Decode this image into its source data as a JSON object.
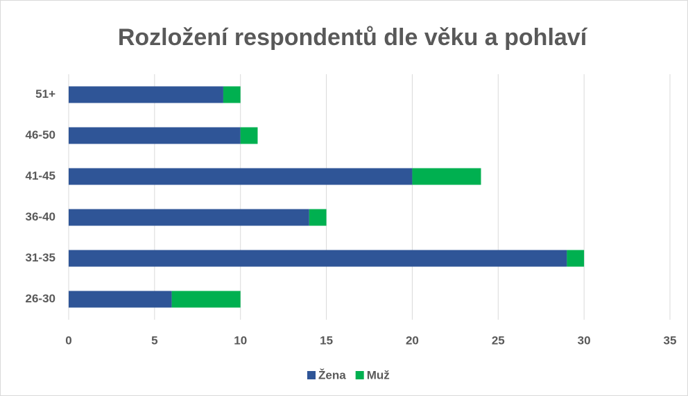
{
  "chart_data": {
    "type": "bar",
    "orientation": "horizontal",
    "stacked": true,
    "title": "Rozložení respondentů dle věku a pohlaví",
    "categories": [
      "26-30",
      "31-35",
      "36-40",
      "41-45",
      "46-50",
      "51+"
    ],
    "series": [
      {
        "name": "Žena",
        "color": "#2f5597",
        "values": [
          6,
          29,
          14,
          20,
          10,
          9
        ]
      },
      {
        "name": "Muž",
        "color": "#00b050",
        "values": [
          4,
          1,
          1,
          4,
          1,
          1
        ]
      }
    ],
    "xlim": [
      0,
      35
    ],
    "xticks": [
      0,
      5,
      10,
      15,
      20,
      25,
      30,
      35
    ],
    "grid": true,
    "legend": "bottom"
  }
}
